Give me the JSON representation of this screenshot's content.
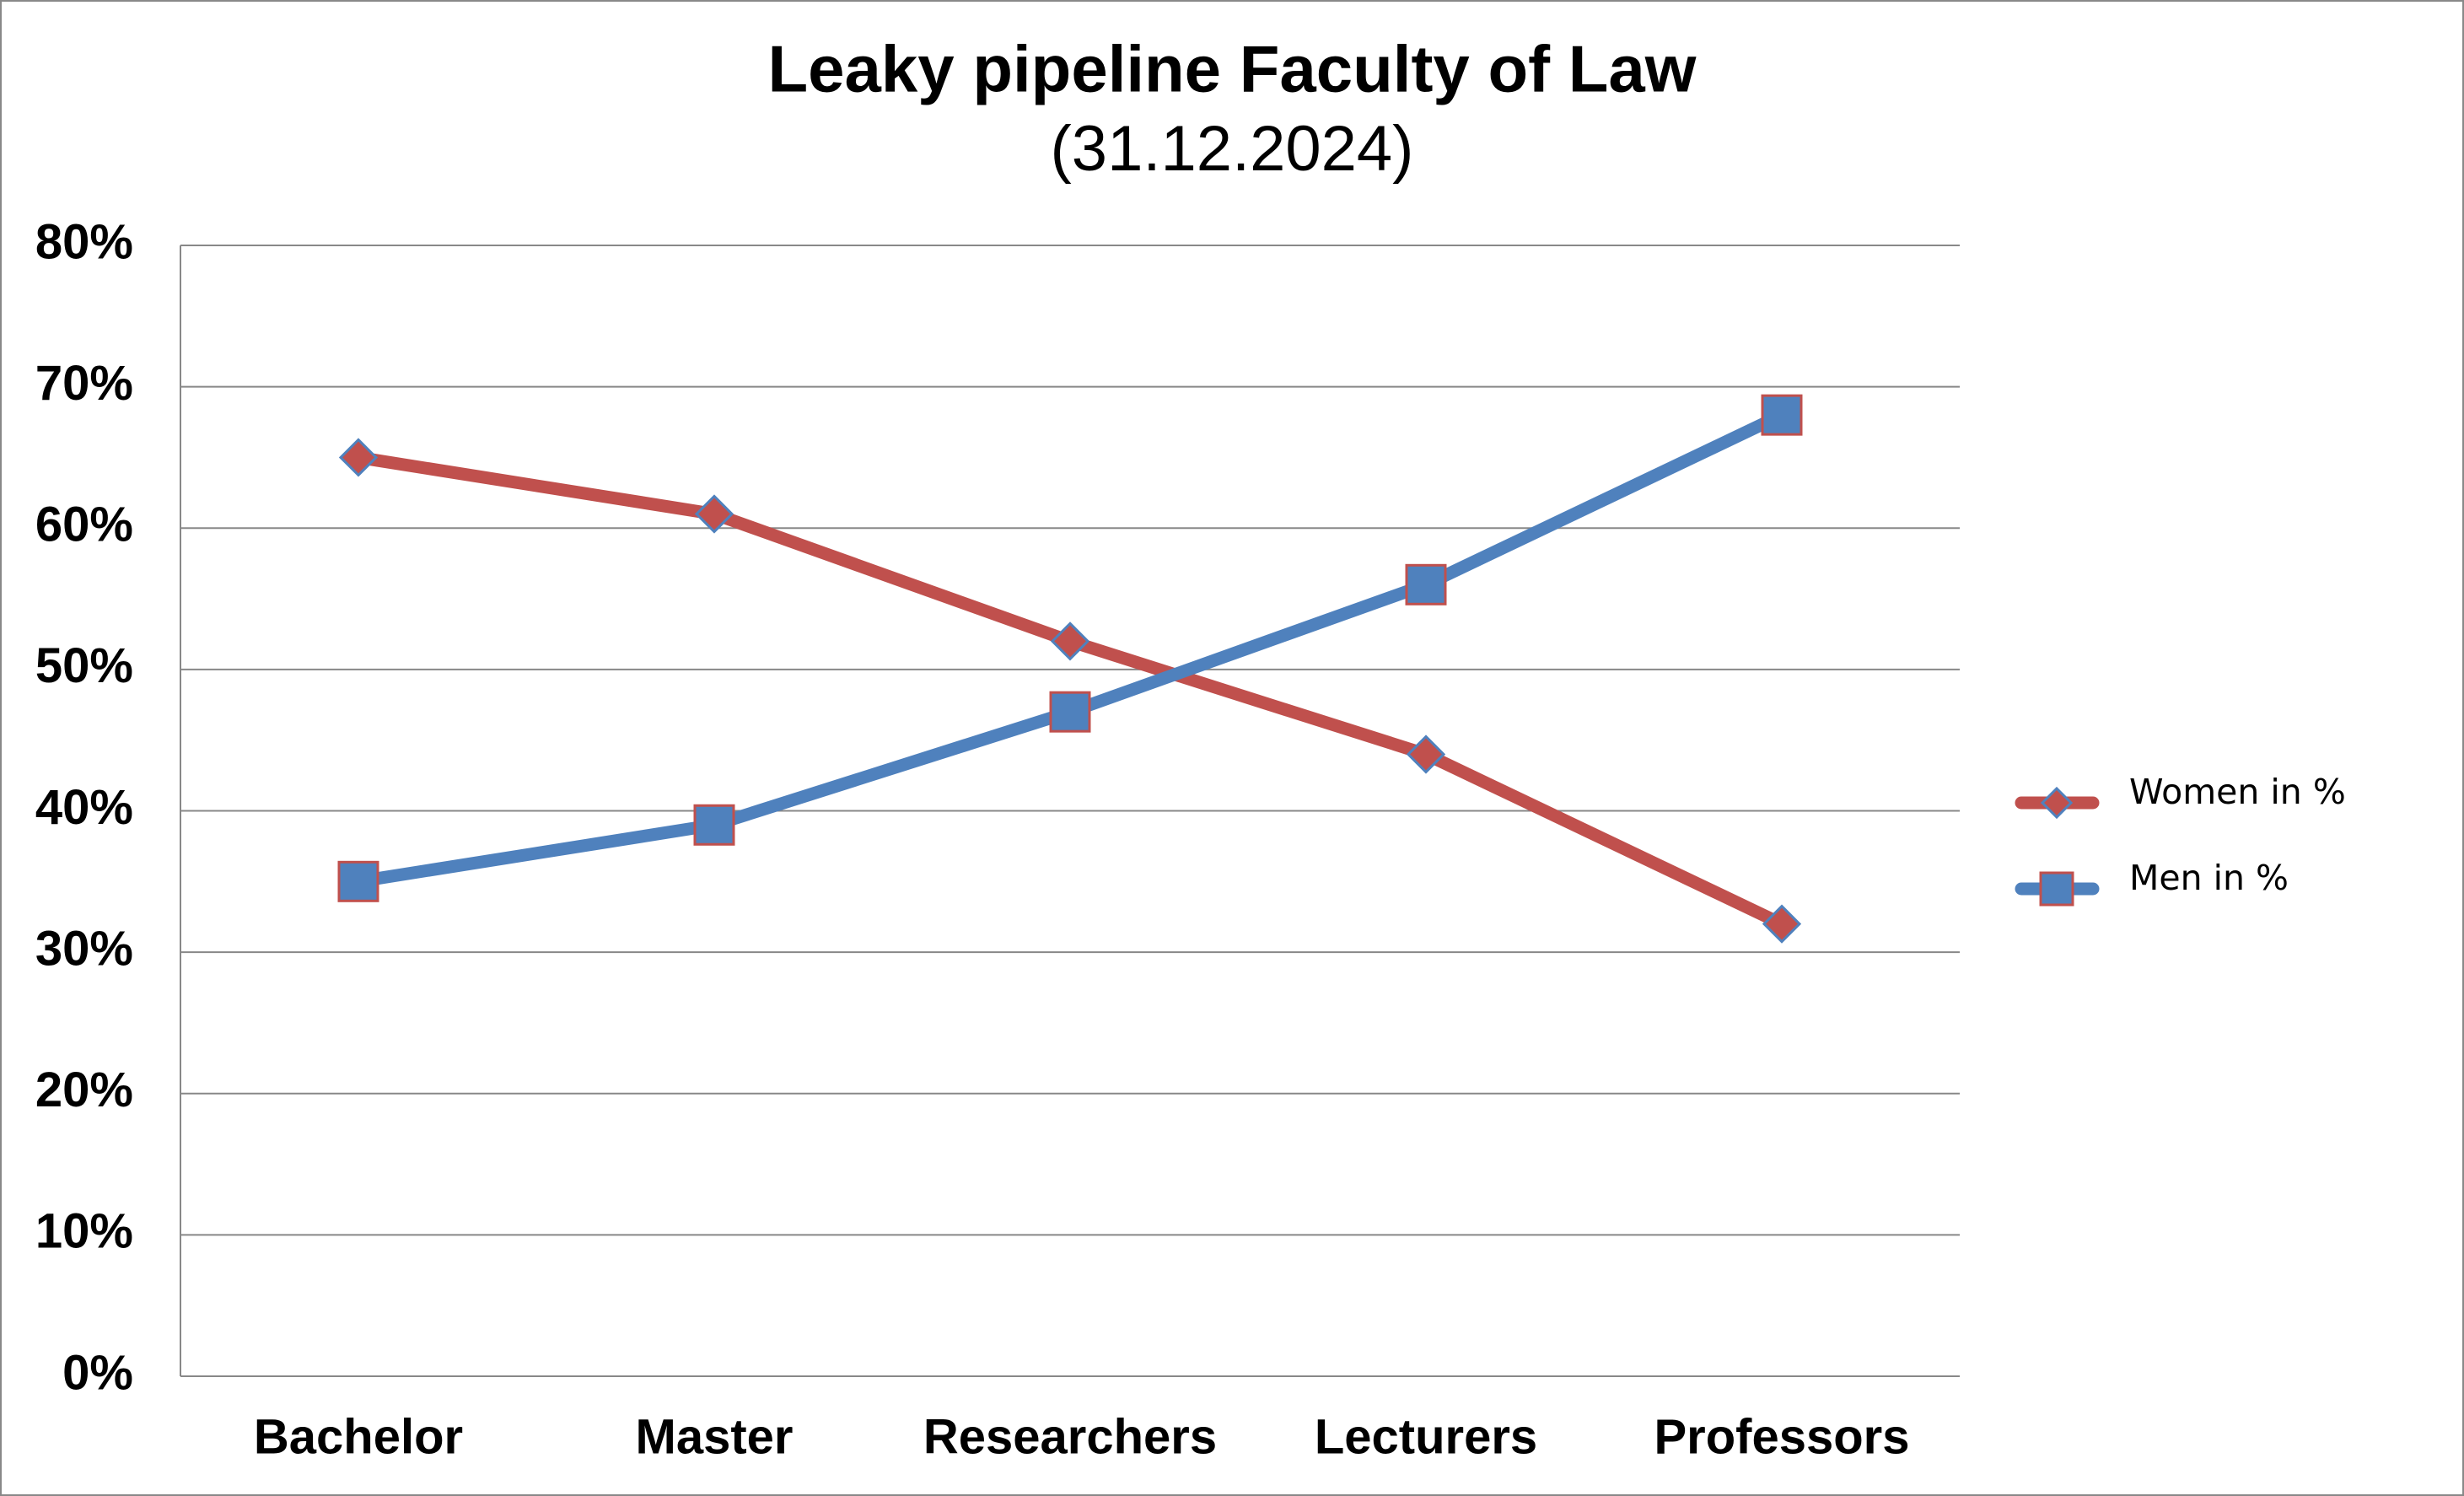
{
  "chart_data": {
    "type": "line",
    "title": "Leaky pipeline Faculty of Law",
    "subtitle": "(31.12.2024)",
    "categories": [
      "Bachelor",
      "Master",
      "Researchers",
      "Lecturers",
      "Professors"
    ],
    "series": [
      {
        "name": "Women in %",
        "color": "#c0504d",
        "marker": "diamond",
        "marker_edge": "#4f81bd",
        "values": [
          65,
          61,
          52,
          44,
          32
        ]
      },
      {
        "name": "Men in %",
        "color": "#4f81bd",
        "marker": "square",
        "marker_edge": "#c0504d",
        "values": [
          35,
          39,
          47,
          56,
          68
        ]
      }
    ],
    "ylim": [
      0,
      80
    ],
    "yticks": [
      {
        "value": 0,
        "label": "0%"
      },
      {
        "value": 10,
        "label": "10%"
      },
      {
        "value": 20,
        "label": "20%"
      },
      {
        "value": 30,
        "label": "30%"
      },
      {
        "value": 40,
        "label": "40%"
      },
      {
        "value": 50,
        "label": "50%"
      },
      {
        "value": 60,
        "label": "60%"
      },
      {
        "value": 70,
        "label": "70%"
      },
      {
        "value": 80,
        "label": "80%"
      }
    ],
    "grid": true,
    "legend": "right"
  }
}
